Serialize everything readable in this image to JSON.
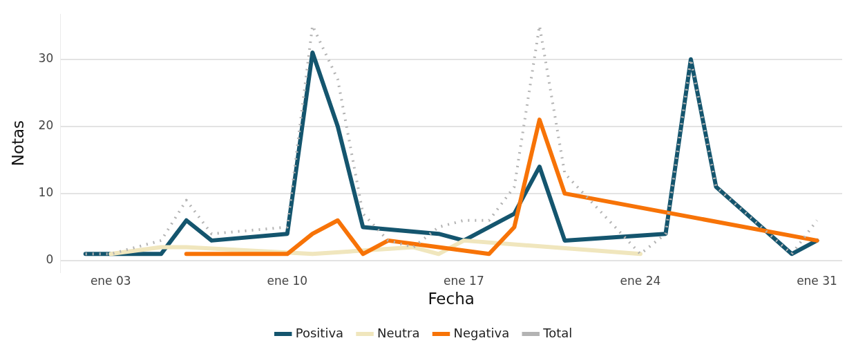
{
  "chart_data": {
    "type": "line",
    "xlabel": "Fecha",
    "ylabel": "Notas",
    "xlim": [
      "--01-01",
      "--02-01"
    ],
    "xticks": [
      {
        "value": "--01-03",
        "label": "ene 03"
      },
      {
        "value": "--01-10",
        "label": "ene 10"
      },
      {
        "value": "--01-17",
        "label": "ene 17"
      },
      {
        "value": "--01-24",
        "label": "ene 24"
      },
      {
        "value": "--01-31",
        "label": "ene 31"
      }
    ],
    "ylim": [
      -1.75,
      36.75
    ],
    "yticks": [
      0,
      10,
      20,
      30
    ],
    "grid": "y",
    "legend": "bottom",
    "series": [
      {
        "name": "Positiva",
        "color": "#14556e",
        "line_style": "solid",
        "x": [
          "--01-02",
          "--01-03",
          "--01-04",
          "--01-05",
          "--01-06",
          "--01-07",
          "--01-10",
          "--01-11",
          "--01-12",
          "--01-13",
          "--01-16",
          "--01-17",
          "--01-19",
          "--01-20",
          "--01-21",
          "--01-25",
          "--01-26",
          "--01-27",
          "--01-30",
          "--01-31"
        ],
        "values": [
          1,
          1,
          1,
          1,
          6,
          3,
          4,
          31,
          20,
          5,
          4,
          3,
          7,
          14,
          3,
          4,
          30,
          11,
          1,
          3
        ]
      },
      {
        "name": "Neutra",
        "color": "#f0e6bd",
        "line_style": "solid",
        "x": [
          "--01-03",
          "--01-05",
          "--01-06",
          "--01-11",
          "--01-15",
          "--01-16",
          "--01-17",
          "--01-24"
        ],
        "values": [
          1,
          2,
          2,
          1,
          2,
          1,
          3,
          1
        ]
      },
      {
        "name": "Negativa",
        "color": "#f77307",
        "line_style": "solid",
        "x": [
          "--01-06",
          "--01-10",
          "--01-11",
          "--01-12",
          "--01-13",
          "--01-14",
          "--01-16",
          "--01-18",
          "--01-19",
          "--01-20",
          "--01-21",
          "--01-31"
        ],
        "values": [
          1,
          1,
          4,
          6,
          1,
          3,
          2,
          1,
          5,
          21,
          10,
          3
        ]
      },
      {
        "name": "Total",
        "color": "#b3b3b3",
        "line_style": "dotted",
        "x": [
          "--01-02",
          "--01-03",
          "--01-04",
          "--01-05",
          "--01-06",
          "--01-07",
          "--01-10",
          "--01-11",
          "--01-12",
          "--01-13",
          "--01-14",
          "--01-15",
          "--01-16",
          "--01-17",
          "--01-18",
          "--01-19",
          "--01-20",
          "--01-21",
          "--01-22",
          "--01-23",
          "--01-24",
          "--01-25",
          "--01-26",
          "--01-27",
          "--01-30",
          "--01-31"
        ],
        "values": [
          1,
          1,
          2,
          3,
          9,
          4,
          5,
          35,
          27,
          7,
          3,
          2,
          5,
          6,
          6,
          11,
          35,
          13,
          9,
          5,
          1,
          4,
          30,
          11,
          1,
          6
        ]
      }
    ]
  }
}
